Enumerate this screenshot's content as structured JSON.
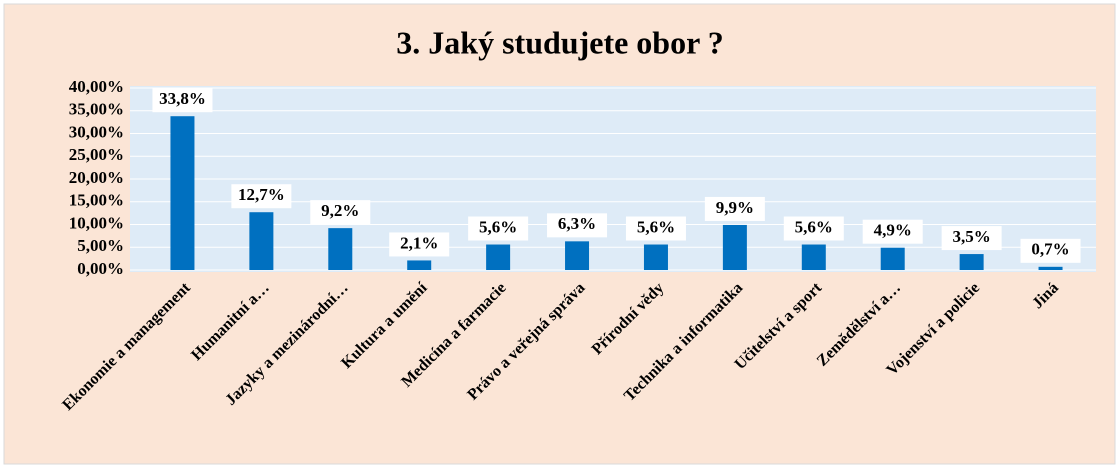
{
  "chart_data": {
    "type": "bar",
    "title": "3. Jaký studujete obor ?",
    "categories": [
      "Ekonomie a management",
      "Humanitní a…",
      "Jazyky a mezinárodní…",
      "Kultura a umění",
      "Medicína a farmacie",
      "Právo a veřejná správa",
      "Přírodní vědy",
      "Technika a informatika",
      "Učitelství a sport",
      "Zemědělství a…",
      "Vojenství a policie",
      "Jiná"
    ],
    "values": [
      33.8,
      12.7,
      9.2,
      2.1,
      5.6,
      6.3,
      5.6,
      9.9,
      5.6,
      4.9,
      3.5,
      0.7
    ],
    "value_labels": [
      "33,8%",
      "12,7%",
      "9,2%",
      "2,1%",
      "5,6%",
      "6,3%",
      "5,6%",
      "9,9%",
      "5,6%",
      "4,9%",
      "3,5%",
      "0,7%"
    ],
    "color": "#0070c0",
    "ylim": [
      0,
      40
    ],
    "yticks": [
      {
        "value": 0,
        "label": "0,00%"
      },
      {
        "value": 5,
        "label": "5,00%"
      },
      {
        "value": 10,
        "label": "10,00%"
      },
      {
        "value": 15,
        "label": "15,00%"
      },
      {
        "value": 20,
        "label": "20,00%"
      },
      {
        "value": 25,
        "label": "25,00%"
      },
      {
        "value": 30,
        "label": "30,00%"
      },
      {
        "value": 35,
        "label": "35,00%"
      },
      {
        "value": 40,
        "label": "40,00%"
      }
    ],
    "grid": true
  }
}
